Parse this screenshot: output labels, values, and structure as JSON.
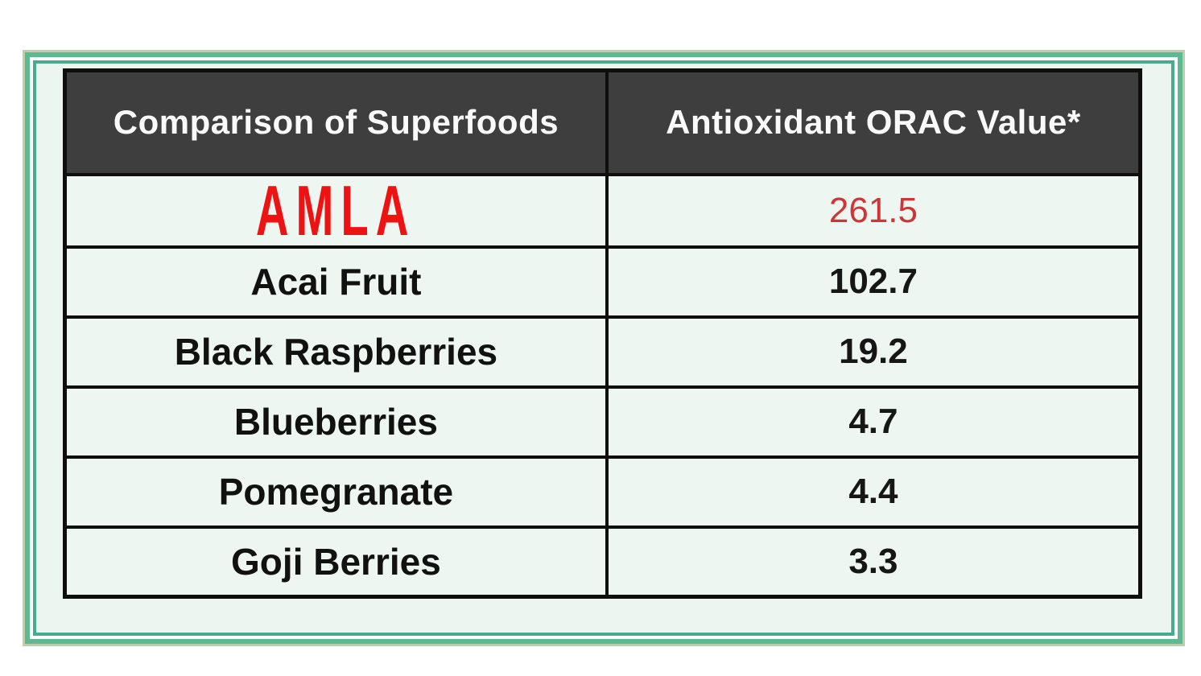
{
  "table": {
    "headers": [
      {
        "label": "Comparison of Superfoods"
      },
      {
        "label": "Antioxidant ORAC Value*"
      }
    ],
    "rows": [
      {
        "name": "AMLA",
        "value": "261.5",
        "highlight": true
      },
      {
        "name": "Acai Fruit",
        "value": "102.7",
        "highlight": false
      },
      {
        "name": "Black Raspberries",
        "value": "19.2",
        "highlight": false
      },
      {
        "name": "Blueberries",
        "value": "4.7",
        "highlight": false
      },
      {
        "name": "Pomegranate",
        "value": "4.4",
        "highlight": false
      },
      {
        "name": "Goji Berries",
        "value": "3.3",
        "highlight": false
      }
    ]
  },
  "colors": {
    "header_background": "#3e3e3e",
    "header_text": "#fafafa",
    "row_background": "#eef6f2",
    "table_border": "#0e0e0e",
    "highlight_name_red": "#ee1212",
    "highlight_value_red": "#d03434",
    "frame_sage": "#bccfac",
    "frame_green": "#5eb992",
    "frame_teal": "#47ac8e",
    "frame_interior": "#edf5f1",
    "page_background": "#ffffff"
  },
  "chart_data": {
    "type": "table",
    "title": "Comparison of Superfoods",
    "columns": [
      "Comparison of Superfoods",
      "Antioxidant ORAC Value*"
    ],
    "categories": [
      "AMLA",
      "Acai Fruit",
      "Black Raspberries",
      "Blueberries",
      "Pomegranate",
      "Goji Berries"
    ],
    "values": [
      261.5,
      102.7,
      19.2,
      4.7,
      4.4,
      3.3
    ],
    "highlighted_row": "AMLA",
    "value_note_marker": "*"
  }
}
